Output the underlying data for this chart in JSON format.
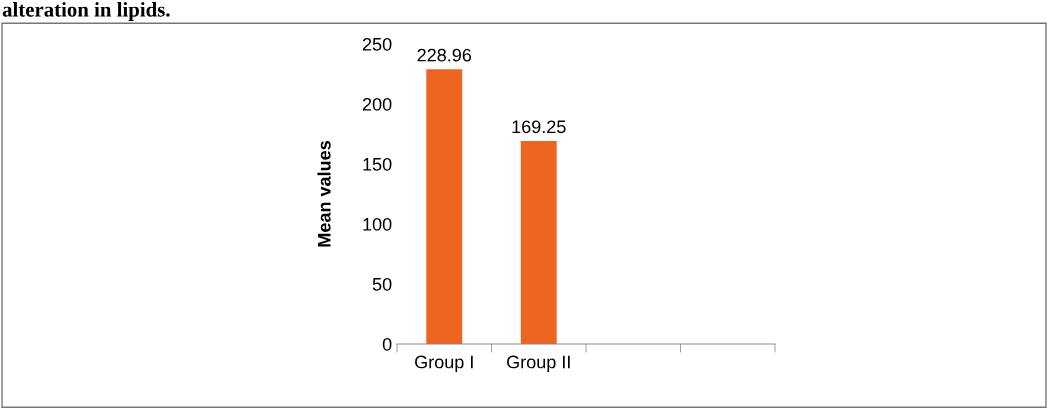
{
  "chart_data": {
    "type": "bar",
    "title": "alteration in lipids.",
    "ylabel": "Mean values",
    "categories": [
      "Group I",
      "Group II",
      null,
      null
    ],
    "values": [
      228.96,
      169.25,
      null,
      null
    ],
    "color": "#ed6520",
    "ylim": [
      0,
      250
    ],
    "yticks": [
      0,
      50,
      100,
      150,
      200,
      250
    ],
    "data_labels": true,
    "grid": false,
    "legend": false
  }
}
